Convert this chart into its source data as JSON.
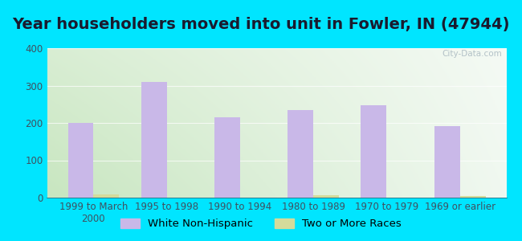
{
  "title": "Year householders moved into unit in Fowler, IN (47944)",
  "categories": [
    "1999 to March\n2000",
    "1995 to 1998",
    "1990 to 1994",
    "1980 to 1989",
    "1970 to 1979",
    "1969 or earlier"
  ],
  "white_values": [
    201,
    309,
    215,
    235,
    248,
    191
  ],
  "two_or_more_values": [
    9,
    0,
    0,
    6,
    0,
    5
  ],
  "bar_width": 0.35,
  "white_color": "#c9b8e8",
  "two_or_more_color": "#d4db9b",
  "background_outer": "#00e5ff",
  "bg_left": "#c8e6c0",
  "bg_right": "#f0f8f0",
  "bg_top": "#f5f5f5",
  "ylim": [
    0,
    400
  ],
  "yticks": [
    0,
    100,
    200,
    300,
    400
  ],
  "title_fontsize": 14,
  "tick_fontsize": 8.5,
  "legend_fontsize": 9.5,
  "title_color": "#1a1a2e",
  "tick_color": "#405060",
  "watermark": "City-Data.com"
}
